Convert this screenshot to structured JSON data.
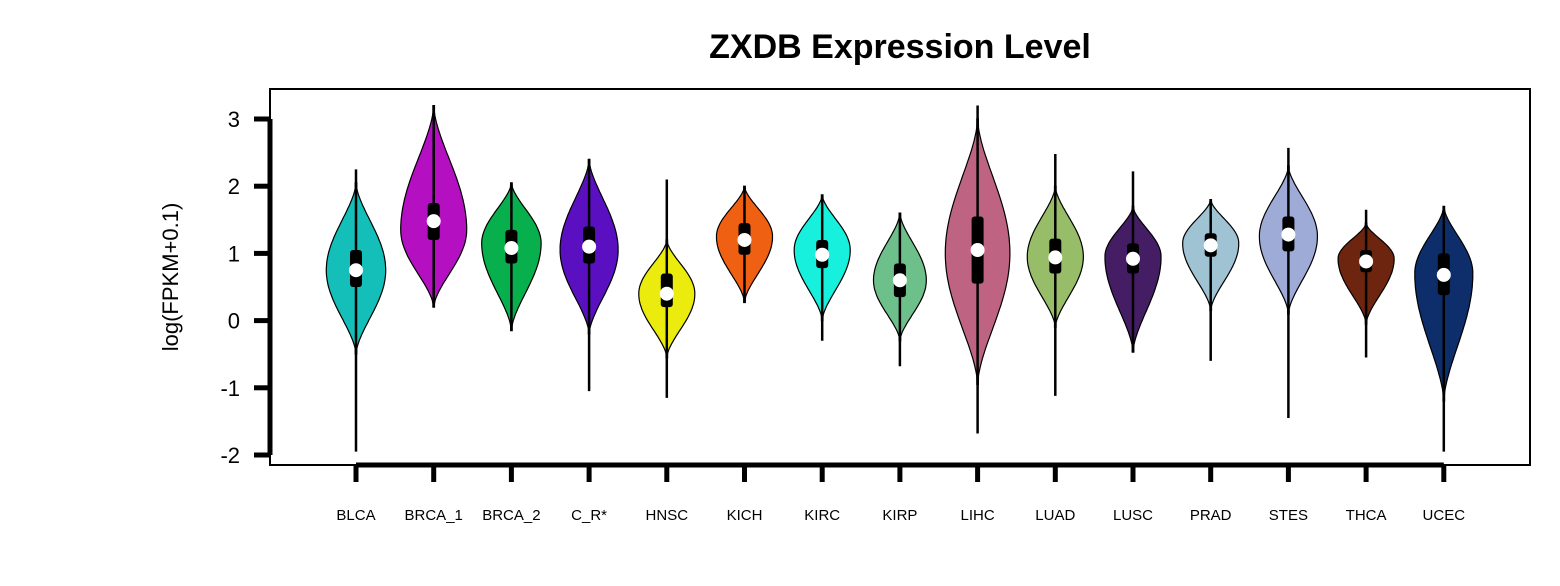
{
  "chart_data": {
    "type": "violin",
    "title": "ZXDB Expression Level",
    "xlabel": "",
    "ylabel": "log(FPKM+0.1)",
    "ylim": [
      -2,
      3
    ],
    "yticks": [
      "-2",
      "-1",
      "0",
      "1",
      "2",
      "3"
    ],
    "grid": false,
    "legend": "none",
    "series": [
      {
        "category": "BLCA",
        "color": "#13BFB8",
        "min": -1.95,
        "max": 2.25,
        "q1": 0.5,
        "median": 0.75,
        "q3": 1.05,
        "peak": 0.75,
        "low": -0.5,
        "high": 2.05,
        "width": 0.9
      },
      {
        "category": "BRCA_1",
        "color": "#B40FC1",
        "min": 0.2,
        "max": 3.2,
        "q1": 1.2,
        "median": 1.48,
        "q3": 1.75,
        "peak": 1.35,
        "low": 0.2,
        "high": 3.2,
        "width": 1.0
      },
      {
        "category": "BRCA_2",
        "color": "#08B04D",
        "min": -0.15,
        "max": 2.05,
        "q1": 0.85,
        "median": 1.08,
        "q3": 1.35,
        "peak": 1.15,
        "low": -0.15,
        "high": 2.05,
        "width": 0.9
      },
      {
        "category": "C_R*",
        "color": "#5A0FC1",
        "min": -1.05,
        "max": 2.4,
        "q1": 0.85,
        "median": 1.1,
        "q3": 1.4,
        "peak": 1.05,
        "low": -0.2,
        "high": 2.4,
        "width": 0.88
      },
      {
        "category": "HNSC",
        "color": "#EBEB0E",
        "min": -1.15,
        "max": 2.1,
        "q1": 0.2,
        "median": 0.4,
        "q3": 0.7,
        "peak": 0.4,
        "low": -0.55,
        "high": 1.2,
        "width": 0.85
      },
      {
        "category": "KICH",
        "color": "#F06012",
        "min": 0.27,
        "max": 2.0,
        "q1": 0.98,
        "median": 1.2,
        "q3": 1.45,
        "peak": 1.25,
        "low": 0.27,
        "high": 2.0,
        "width": 0.85
      },
      {
        "category": "KIRC",
        "color": "#16F0DC",
        "min": -0.3,
        "max": 1.87,
        "q1": 0.78,
        "median": 0.98,
        "q3": 1.2,
        "peak": 1.05,
        "low": 0.0,
        "high": 1.87,
        "width": 0.85
      },
      {
        "category": "KIRP",
        "color": "#6EC08A",
        "min": -0.68,
        "max": 1.6,
        "q1": 0.35,
        "median": 0.6,
        "q3": 0.85,
        "peak": 0.6,
        "low": -0.3,
        "high": 1.6,
        "width": 0.8
      },
      {
        "category": "LIHC",
        "color": "#BE6482",
        "min": -1.68,
        "max": 3.2,
        "q1": 0.55,
        "median": 1.05,
        "q3": 1.55,
        "peak": 1.0,
        "low": -0.95,
        "high": 3.0,
        "width": 0.98
      },
      {
        "category": "LUAD",
        "color": "#98BD68",
        "min": -1.12,
        "max": 2.48,
        "q1": 0.7,
        "median": 0.94,
        "q3": 1.22,
        "peak": 0.95,
        "low": -0.1,
        "high": 2.0,
        "width": 0.85
      },
      {
        "category": "LUSC",
        "color": "#451D65",
        "min": -0.47,
        "max": 2.22,
        "q1": 0.7,
        "median": 0.92,
        "q3": 1.15,
        "peak": 0.95,
        "low": -0.47,
        "high": 1.7,
        "width": 0.85
      },
      {
        "category": "PRAD",
        "color": "#9FC3D2",
        "min": -0.6,
        "max": 1.8,
        "q1": 0.95,
        "median": 1.12,
        "q3": 1.3,
        "peak": 1.15,
        "low": 0.15,
        "high": 1.8,
        "width": 0.85
      },
      {
        "category": "STES",
        "color": "#9EABD6",
        "min": -1.45,
        "max": 2.57,
        "q1": 1.03,
        "median": 1.28,
        "q3": 1.55,
        "peak": 1.25,
        "low": 0.1,
        "high": 2.3,
        "width": 0.88
      },
      {
        "category": "THCA",
        "color": "#6E2510",
        "min": -0.55,
        "max": 1.65,
        "q1": 0.72,
        "median": 0.88,
        "q3": 1.05,
        "peak": 0.92,
        "low": -0.05,
        "high": 1.45,
        "width": 0.85
      },
      {
        "category": "UCEC",
        "color": "#0D2E6A",
        "min": -1.95,
        "max": 1.7,
        "q1": 0.38,
        "median": 0.68,
        "q3": 1.0,
        "peak": 0.7,
        "low": -1.2,
        "high": 1.7,
        "width": 0.88
      }
    ]
  }
}
